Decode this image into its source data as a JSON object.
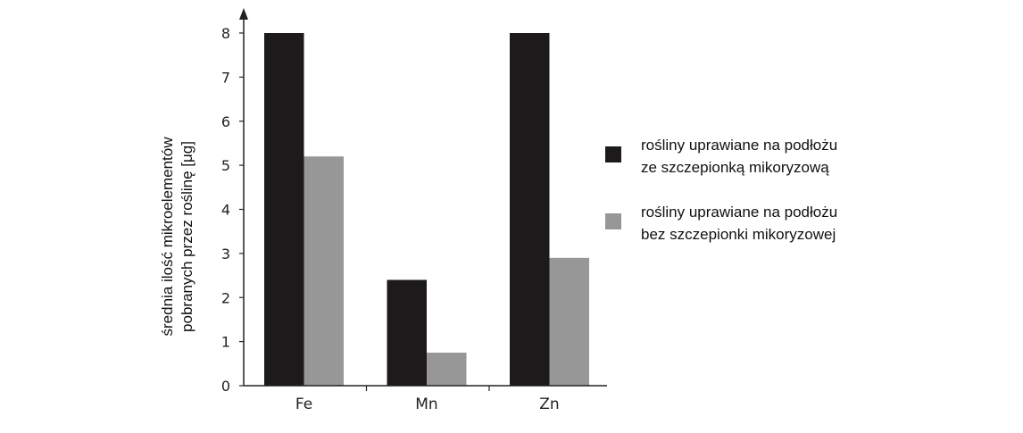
{
  "chart_data": {
    "type": "bar",
    "categories": [
      "Fe",
      "Mn",
      "Zn"
    ],
    "series": [
      {
        "name": "rośliny uprawiane na podłożu ze szczepionką mikoryzową",
        "legend_lines": [
          "rośliny uprawiane na podłożu",
          "ze szczepionką mikoryzową"
        ],
        "color": "#1d1a1b",
        "values": [
          8,
          2.4,
          8
        ]
      },
      {
        "name": "rośliny uprawiane na podłożu bez szczepionki mikoryzowej",
        "legend_lines": [
          "rośliny uprawiane na podłożu",
          "bez szczepionki mikoryzowej"
        ],
        "color": "#979797",
        "values": [
          5.2,
          0.75,
          2.9
        ]
      }
    ],
    "ylabel_lines": [
      "średnia ilość mikroelementów",
      "pobranych przez roślinę [μg]"
    ],
    "ylim": [
      0,
      8
    ],
    "yticks": [
      "0",
      "1",
      "2",
      "3",
      "4",
      "5",
      "6",
      "7",
      "8"
    ],
    "grid": false,
    "legend_position": "right"
  }
}
